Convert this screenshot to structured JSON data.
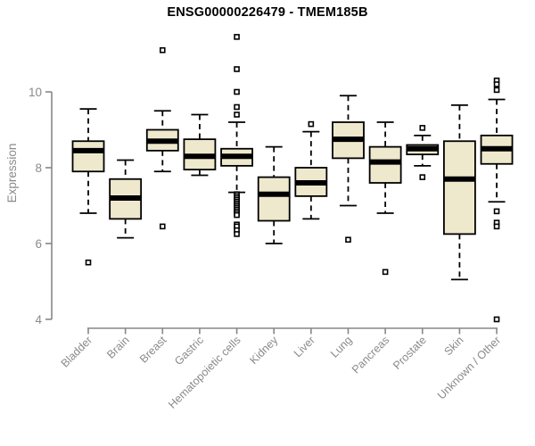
{
  "window": {
    "background": "#ffffff"
  },
  "chart_data": {
    "type": "boxplot",
    "title": "ENSG00000226479 - TMEM185B",
    "xlabel": "",
    "ylabel": "Expression",
    "yticks": [
      4,
      6,
      8,
      10
    ],
    "axis_range": [
      4,
      10
    ],
    "grid": false,
    "legend": "none",
    "categories": [
      "Bladder",
      "Brain",
      "Breast",
      "Gastric",
      "Hematopoietic cells",
      "Kidney",
      "Liver",
      "Lung",
      "Pancreas",
      "Prostate",
      "Skin",
      "Unknown / Other"
    ],
    "series": [
      {
        "category": "Bladder",
        "whisker_low": 6.8,
        "q1": 7.9,
        "median": 8.45,
        "q3": 8.7,
        "whisker_high": 9.55,
        "outliers": [
          5.5
        ]
      },
      {
        "category": "Brain",
        "whisker_low": 6.15,
        "q1": 6.65,
        "median": 7.2,
        "q3": 7.7,
        "whisker_high": 8.2,
        "outliers": []
      },
      {
        "category": "Breast",
        "whisker_low": 7.9,
        "q1": 8.45,
        "median": 8.7,
        "q3": 9.0,
        "whisker_high": 9.5,
        "outliers": [
          11.1,
          6.45
        ]
      },
      {
        "category": "Gastric",
        "whisker_low": 7.8,
        "q1": 7.95,
        "median": 8.3,
        "q3": 8.75,
        "whisker_high": 9.4,
        "outliers": []
      },
      {
        "category": "Hematopoietic cells",
        "whisker_low": 7.35,
        "q1": 8.05,
        "median": 8.3,
        "q3": 8.5,
        "whisker_high": 9.2,
        "outliers": [
          11.45,
          10.6,
          10.0,
          9.6,
          9.4,
          7.3,
          7.25,
          7.2,
          7.15,
          7.1,
          7.05,
          7.0,
          6.95,
          6.9,
          6.85,
          6.8,
          6.75,
          6.5,
          6.45,
          6.35,
          6.25
        ]
      },
      {
        "category": "Kidney",
        "whisker_low": 6.0,
        "q1": 6.6,
        "median": 7.3,
        "q3": 7.75,
        "whisker_high": 8.55,
        "outliers": []
      },
      {
        "category": "Liver",
        "whisker_low": 6.65,
        "q1": 7.25,
        "median": 7.6,
        "q3": 8.0,
        "whisker_high": 8.95,
        "outliers": [
          9.15
        ]
      },
      {
        "category": "Lung",
        "whisker_low": 7.0,
        "q1": 8.25,
        "median": 8.75,
        "q3": 9.2,
        "whisker_high": 9.9,
        "outliers": [
          6.1
        ]
      },
      {
        "category": "Pancreas",
        "whisker_low": 6.8,
        "q1": 7.6,
        "median": 8.15,
        "q3": 8.55,
        "whisker_high": 9.2,
        "outliers": [
          5.25
        ]
      },
      {
        "category": "Prostate",
        "whisker_low": 8.05,
        "q1": 8.35,
        "median": 8.5,
        "q3": 8.6,
        "whisker_high": 8.85,
        "outliers": [
          9.05,
          7.75
        ]
      },
      {
        "category": "Skin",
        "whisker_low": 5.05,
        "q1": 6.25,
        "median": 7.7,
        "q3": 8.7,
        "whisker_high": 9.65,
        "outliers": []
      },
      {
        "category": "Unknown / Other",
        "whisker_low": 7.1,
        "q1": 8.1,
        "median": 8.5,
        "q3": 8.85,
        "whisker_high": 9.8,
        "outliers": [
          10.3,
          10.2,
          10.05,
          6.85,
          6.55,
          6.45,
          4.0
        ]
      }
    ],
    "style": {
      "box_fill": "#EEE8CD",
      "box_stroke": "#000000",
      "median_color": "#000000",
      "whisker_style": "dashed",
      "outlier_marker": "open-square",
      "axis_color": "#878787",
      "label_color": "#8a8a8a",
      "title_color": "#000000"
    }
  }
}
